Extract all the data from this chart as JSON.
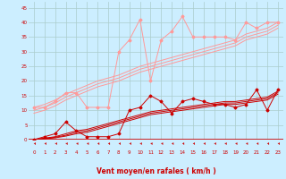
{
  "x": [
    0,
    1,
    2,
    3,
    4,
    5,
    6,
    7,
    8,
    9,
    10,
    11,
    12,
    13,
    14,
    15,
    16,
    17,
    18,
    19,
    20,
    21,
    22,
    23
  ],
  "xlabel": "Vent moyen/en rafales ( km/h )",
  "bg_color": "#cceeff",
  "grid_color": "#aacccc",
  "ylim": [
    0,
    47
  ],
  "xlim": [
    -0.5,
    23.5
  ],
  "yticks": [
    0,
    5,
    10,
    15,
    20,
    25,
    30,
    35,
    40,
    45
  ],
  "xticks": [
    0,
    1,
    2,
    3,
    4,
    5,
    6,
    7,
    8,
    9,
    10,
    11,
    12,
    13,
    14,
    15,
    16,
    17,
    18,
    19,
    20,
    21,
    22,
    23
  ],
  "line_light_jagged": [
    11,
    11,
    13,
    16,
    16,
    11,
    11,
    11,
    30,
    34,
    41,
    20,
    34,
    37,
    42,
    35,
    35,
    35,
    35,
    34,
    40,
    38,
    40,
    40
  ],
  "line_light_linear1": [
    11,
    12,
    13.5,
    15.5,
    17,
    18.5,
    20,
    21,
    22,
    23.5,
    25,
    26,
    27,
    28,
    29,
    30,
    31,
    32,
    33,
    34,
    36,
    37,
    38,
    40
  ],
  "line_light_linear2": [
    10,
    11,
    12.5,
    14.5,
    16,
    17.5,
    19,
    20,
    21,
    22.5,
    24,
    25,
    26,
    27,
    28,
    29,
    30,
    31,
    32,
    33,
    35,
    36,
    37,
    39
  ],
  "line_light_linear3": [
    9,
    10,
    11.5,
    13.5,
    15,
    16.5,
    18,
    19,
    20,
    21.5,
    23,
    24,
    25,
    26,
    27,
    28,
    29,
    30,
    31,
    32,
    34,
    35,
    36,
    38
  ],
  "line_dark_jagged": [
    0,
    1,
    2,
    6,
    3,
    1,
    1,
    1,
    2,
    10,
    11,
    15,
    13,
    9,
    13,
    14,
    13,
    12,
    12,
    11,
    12,
    17,
    10,
    17
  ],
  "line_dark_linear1": [
    0,
    0.5,
    1,
    2,
    3,
    3.5,
    4.5,
    5.5,
    6.5,
    7.5,
    8.5,
    9.5,
    10,
    10.5,
    11,
    11.5,
    12,
    12.5,
    13,
    13,
    13.5,
    14,
    14.5,
    16.5
  ],
  "line_dark_linear2": [
    0,
    0.4,
    0.8,
    1.5,
    2.5,
    3,
    4,
    5,
    6,
    7,
    8,
    9,
    9.5,
    10,
    10.5,
    11,
    11.5,
    12,
    12.5,
    12.5,
    13,
    13.5,
    14,
    16
  ],
  "line_dark_linear3": [
    0,
    0.3,
    0.6,
    1.2,
    2,
    2.5,
    3.5,
    4.5,
    5.5,
    6.5,
    7.5,
    8.5,
    9,
    9.5,
    10,
    10.5,
    11,
    11.5,
    12,
    12,
    12.5,
    13,
    13.5,
    15.5
  ],
  "color_light": "#ff9999",
  "color_dark": "#cc0000",
  "tick_color": "#cc0000",
  "marker": "D"
}
